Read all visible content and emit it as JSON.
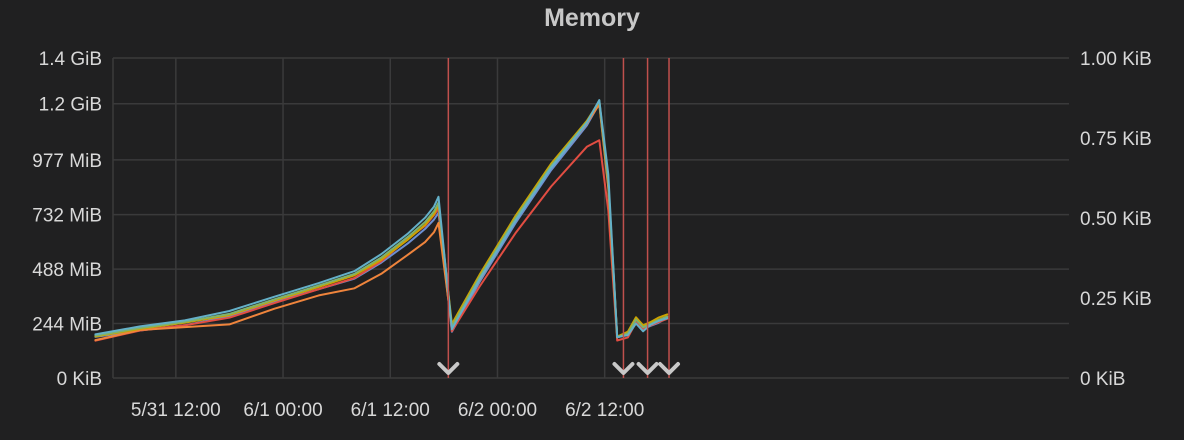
{
  "panel": {
    "title": "Memory"
  },
  "chart_data": {
    "type": "line",
    "title": "Memory",
    "xlabel": "",
    "ylabel": "",
    "grid": true,
    "legend": "none",
    "x_unit": "hours since 5/30 12:00",
    "x_range": [
      14.5,
      121.5
    ],
    "x_ticks": [
      {
        "x": 24,
        "label": "5/31 12:00"
      },
      {
        "x": 36,
        "label": "6/1 00:00"
      },
      {
        "x": 48,
        "label": "6/1 12:00"
      },
      {
        "x": 60,
        "label": "6/2 00:00"
      },
      {
        "x": 72,
        "label": "6/2 12:00"
      }
    ],
    "y_left": {
      "unit": "MiB",
      "range": [
        0,
        1433.6
      ],
      "ticks": [
        {
          "value": 0,
          "label": "0 KiB"
        },
        {
          "value": 244,
          "label": "244 MiB"
        },
        {
          "value": 488,
          "label": "488 MiB"
        },
        {
          "value": 732,
          "label": "732 MiB"
        },
        {
          "value": 977,
          "label": "977 MiB"
        },
        {
          "value": 1228.8,
          "label": "1.2 GiB"
        },
        {
          "value": 1433.6,
          "label": "1.4 GiB"
        }
      ]
    },
    "y_right": {
      "unit": "KiB",
      "range": [
        0,
        1
      ],
      "ticks": [
        {
          "value": 0,
          "label": "0 KiB"
        },
        {
          "value": 0.25,
          "label": "0.25 KiB"
        },
        {
          "value": 0.5,
          "label": "0.50 KiB"
        },
        {
          "value": 0.75,
          "label": "0.75 KiB"
        },
        {
          "value": 1,
          "label": "1.00 KiB"
        }
      ]
    },
    "annotations": [
      {
        "x": 54.5,
        "color": "#c0504d",
        "marker": "chevron-down"
      },
      {
        "x": 74.1,
        "color": "#c0504d",
        "marker": "chevron-down"
      },
      {
        "x": 76.8,
        "color": "#c0504d",
        "marker": "chevron-down"
      },
      {
        "x": 79.2,
        "color": "#c0504d",
        "marker": "chevron-down"
      }
    ],
    "series": [
      {
        "color": "#6d8fd1",
        "x": [
          15,
          20,
          25,
          30,
          35,
          40,
          44,
          47,
          50,
          51.9,
          52.9,
          53.4,
          54.9,
          58,
          62,
          66,
          70,
          71.4,
          72.4,
          73.4,
          74.6,
          75.5,
          76.3,
          77.1,
          78,
          79
        ],
        "y": [
          184,
          213,
          236,
          277,
          342,
          398,
          445,
          517,
          604,
          668,
          710,
          740,
          207,
          430,
          692,
          931,
          1131,
          1230,
          860,
          182,
          196,
          248,
          222,
          233,
          247,
          270
        ]
      },
      {
        "color": "#e24d42",
        "x": [
          15,
          20,
          25,
          30,
          35,
          40,
          44,
          47,
          50,
          51.9,
          52.9,
          53.4,
          54.9,
          58,
          62,
          66,
          70,
          71.4,
          72.4,
          73.4,
          74.6,
          75.5,
          76.3,
          77.1,
          78,
          79
        ],
        "y": [
          167,
          213,
          236,
          270,
          335,
          398,
          448,
          523,
          625,
          682,
          730,
          758,
          210,
          410,
          648,
          858,
          1036,
          1065,
          750,
          168,
          182,
          250,
          220,
          235,
          250,
          265
        ]
      },
      {
        "color": "#ef843c",
        "x": [
          15,
          20,
          25,
          30,
          35,
          40,
          44,
          47,
          50,
          51.9,
          52.9,
          53.4,
          54.9,
          58,
          62,
          66,
          70,
          71.4,
          72.4,
          73.4,
          74.6,
          75.5,
          76.3,
          77.1,
          78,
          79
        ],
        "y": [
          170,
          215,
          228,
          240,
          310,
          370,
          402,
          467,
          553,
          609,
          653,
          695,
          225,
          440,
          708,
          945,
          1140,
          1226,
          850,
          182,
          205,
          265,
          230,
          245,
          260,
          275
        ]
      },
      {
        "color": "#cca300",
        "x": [
          15,
          20,
          25,
          30,
          35,
          40,
          44,
          47,
          50,
          51.9,
          52.9,
          53.4,
          54.9,
          58,
          62,
          66,
          70,
          71.4,
          72.4,
          73.4,
          74.6,
          75.5,
          76.3,
          77.1,
          78,
          79
        ],
        "y": [
          186,
          220,
          248,
          282,
          347,
          408,
          460,
          530,
          621,
          686,
          734,
          776,
          242,
          463,
          725,
          960,
          1152,
          1239,
          880,
          185,
          208,
          272,
          236,
          250,
          270,
          285
        ]
      },
      {
        "color": "#7eb26d",
        "x": [
          15,
          20,
          25,
          30,
          35,
          40,
          44,
          47,
          50,
          51.9,
          52.9,
          53.4,
          54.9,
          58,
          62,
          66,
          70,
          71.4,
          72.4,
          73.4,
          74.6,
          75.5,
          76.3,
          77.1,
          78,
          79
        ],
        "y": [
          190,
          224,
          252,
          287,
          352,
          415,
          467,
          540,
          633,
          699,
          747,
          786,
          230,
          452,
          714,
          950,
          1147,
          1243,
          878,
          183,
          200,
          262,
          227,
          242,
          260,
          275
        ]
      },
      {
        "color": "#64b0c8",
        "x": [
          15,
          20,
          25,
          30,
          35,
          40,
          44,
          47,
          50,
          51.9,
          52.9,
          53.4,
          54.9,
          58,
          62,
          66,
          70,
          71.4,
          72.4,
          73.4,
          74.6,
          75.5,
          76.3,
          77.1,
          78,
          79
        ],
        "y": [
          196,
          231,
          258,
          300,
          364,
          425,
          479,
          555,
          648,
          718,
          768,
          812,
          218,
          442,
          703,
          942,
          1143,
          1245,
          912,
          183,
          192,
          244,
          209,
          238,
          255,
          268
        ]
      }
    ]
  }
}
